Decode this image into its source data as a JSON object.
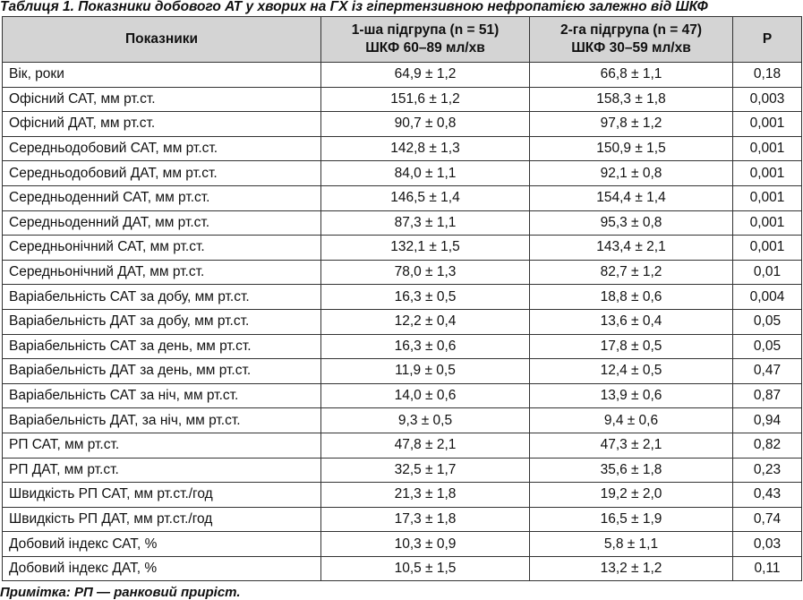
{
  "caption": "Таблиця 1. Показники добового АТ у хворих на ГХ із гіпертензивною нефропатією залежно від ШКФ",
  "columns": {
    "indicator": "Показники",
    "group1_line1": "1-ша підгрупа (n = 51)",
    "group1_line2": "ШКФ 60–89 мл/хв",
    "group2_line1": "2-га підгрупа (n = 47)",
    "group2_line2": "ШКФ 30–59 мл/хв",
    "p": "Р"
  },
  "rows": [
    {
      "label": "Вік, роки",
      "g1": "64,9 ± 1,2",
      "g2": "66,8 ± 1,1",
      "p": "0,18"
    },
    {
      "label": "Офісний САТ, мм рт.ст.",
      "g1": "151,6 ± 1,2",
      "g2": "158,3 ± 1,8",
      "p": "0,003"
    },
    {
      "label": "Офісний ДАТ, мм рт.ст.",
      "g1": "90,7 ± 0,8",
      "g2": "97,8 ± 1,2",
      "p": "0,001"
    },
    {
      "label": "Середньодобовий САТ, мм рт.ст.",
      "g1": "142,8 ± 1,3",
      "g2": "150,9 ± 1,5",
      "p": "0,001"
    },
    {
      "label": "Середньодобовий ДАТ, мм рт.ст.",
      "g1": "84,0 ± 1,1",
      "g2": "92,1 ± 0,8",
      "p": "0,001"
    },
    {
      "label": "Середньоденний САТ, мм рт.ст.",
      "g1": "146,5 ± 1,4",
      "g2": "154,4 ± 1,4",
      "p": "0,001"
    },
    {
      "label": "Середньоденний ДАТ, мм рт.ст.",
      "g1": "87,3 ± 1,1",
      "g2": "95,3 ± 0,8",
      "p": "0,001"
    },
    {
      "label": "Середньонічний САТ, мм рт.ст.",
      "g1": "132,1 ± 1,5",
      "g2": "143,4 ± 2,1",
      "p": "0,001"
    },
    {
      "label": "Середньонічний ДАТ, мм рт.ст.",
      "g1": "78,0 ± 1,3",
      "g2": "82,7 ± 1,2",
      "p": "0,01"
    },
    {
      "label": "Варіабельність САТ за добу, мм рт.ст.",
      "g1": "16,3 ± 0,5",
      "g2": "18,8 ± 0,6",
      "p": "0,004"
    },
    {
      "label": "Варіабельність ДАТ за добу, мм рт.ст.",
      "g1": "12,2 ± 0,4",
      "g2": "13,6 ± 0,4",
      "p": "0,05"
    },
    {
      "label": "Варіабельність САТ за день, мм рт.ст.",
      "g1": "16,3 ± 0,6",
      "g2": "17,8 ± 0,5",
      "p": "0,05"
    },
    {
      "label": "Варіабельність ДАТ за день, мм рт.ст.",
      "g1": "11,9 ± 0,5",
      "g2": "12,4 ± 0,5",
      "p": "0,47"
    },
    {
      "label": "Варіабельність САТ за ніч, мм рт.ст.",
      "g1": "14,0 ± 0,6",
      "g2": "13,9 ± 0,6",
      "p": "0,87"
    },
    {
      "label": "Варіабельність ДАТ, за ніч, мм рт.ст.",
      "g1": "9,3 ± 0,5",
      "g2": "9,4 ± 0,6",
      "p": "0,94"
    },
    {
      "label": "РП САТ, мм рт.ст.",
      "g1": "47,8 ± 2,1",
      "g2": "47,3 ± 2,1",
      "p": "0,82"
    },
    {
      "label": "РП ДАТ, мм рт.ст.",
      "g1": "32,5 ± 1,7",
      "g2": "35,6 ± 1,8",
      "p": "0,23"
    },
    {
      "label": "Швидкість РП САТ, мм рт.ст./год",
      "g1": "21,3 ± 1,8",
      "g2": "19,2 ± 2,0",
      "p": "0,43"
    },
    {
      "label": "Швидкість РП ДАТ, мм рт.ст./год",
      "g1": "17,3 ± 1,8",
      "g2": "16,5 ± 1,9",
      "p": "0,74"
    },
    {
      "label": "Добовий індекс САТ, %",
      "g1": "10,3 ± 0,9",
      "g2": "5,8 ± 1,1",
      "p": "0,03"
    },
    {
      "label": "Добовий індекс ДАТ, %",
      "g1": "10,5 ± 1,5",
      "g2": "13,2 ± 1,2",
      "p": "0,11"
    }
  ],
  "note": "Примітка: РП — ранковий приріст."
}
